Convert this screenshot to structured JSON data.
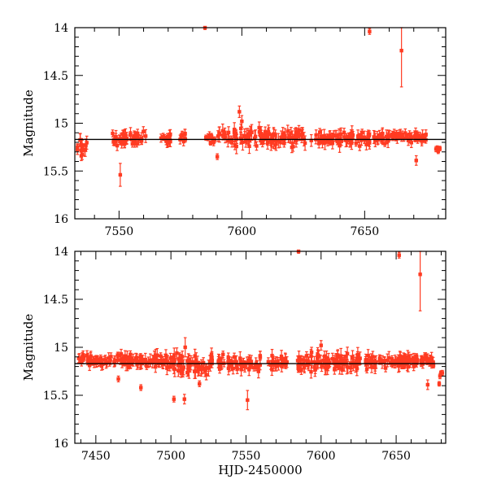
{
  "colors": {
    "points": "#ff3b22",
    "model_line": "#000000",
    "axes": "#000000",
    "background": "#ffffff"
  },
  "chart_data": [
    {
      "id": "top",
      "type": "scatter",
      "xlim": [
        7532,
        7683
      ],
      "ylim": [
        16,
        14
      ],
      "x_ticks": [
        7550,
        7600,
        7650
      ],
      "x_tick_labels": [
        "7550",
        "7600",
        "7650"
      ],
      "y_ticks": [
        14,
        14.5,
        15,
        15.5,
        16
      ],
      "y_tick_labels": [
        "14",
        "14.5",
        "15",
        "15.5",
        "16"
      ],
      "x_minor_step": 10,
      "y_minor_step": 0.1,
      "xlabel": "",
      "ylabel": "Magnitude",
      "reference_magnitude": 15.17,
      "segments": [
        {
          "x_start": 7533,
          "x_end": 7537,
          "count": 14,
          "center": 15.24,
          "scatter": 0.08,
          "err": 0.05
        },
        {
          "x_start": 7546,
          "x_end": 7561,
          "count": 42,
          "center": 15.16,
          "scatter": 0.05,
          "err": 0.05
        },
        {
          "x_start": 7567,
          "x_end": 7571,
          "count": 14,
          "center": 15.17,
          "scatter": 0.05,
          "err": 0.05
        },
        {
          "x_start": 7574,
          "x_end": 7577,
          "count": 8,
          "center": 15.15,
          "scatter": 0.04,
          "err": 0.04
        },
        {
          "x_start": 7585,
          "x_end": 7589,
          "count": 10,
          "center": 15.16,
          "scatter": 0.03,
          "err": 0.03
        },
        {
          "x_start": 7590,
          "x_end": 7626,
          "count": 110,
          "center": 15.15,
          "scatter": 0.06,
          "err": 0.06
        },
        {
          "x_start": 7628,
          "x_end": 7660,
          "count": 95,
          "center": 15.16,
          "scatter": 0.05,
          "err": 0.05
        },
        {
          "x_start": 7660,
          "x_end": 7675,
          "count": 45,
          "center": 15.14,
          "scatter": 0.04,
          "err": 0.04
        },
        {
          "x_start": 7679,
          "x_end": 7681,
          "count": 4,
          "center": 15.28,
          "scatter": 0.04,
          "err": 0.02
        }
      ],
      "outliers": [
        {
          "x": 7550.5,
          "y": 15.54,
          "err": 0.12
        },
        {
          "x": 7535.0,
          "y": 15.33,
          "err": 0.05
        },
        {
          "x": 7599.0,
          "y": 14.88,
          "err": 0.06
        },
        {
          "x": 7600.0,
          "y": 14.98,
          "err": 0.06
        },
        {
          "x": 7652.0,
          "y": 14.04,
          "err": 0.03
        },
        {
          "x": 7665.0,
          "y": 14.24,
          "err": 0.38
        },
        {
          "x": 7585.0,
          "y": 14.0,
          "err": 0.02
        },
        {
          "x": 7671.0,
          "y": 15.39,
          "err": 0.05
        },
        {
          "x": 7590.0,
          "y": 15.35,
          "err": 0.03
        }
      ]
    },
    {
      "id": "bottom",
      "type": "scatter",
      "xlim": [
        7436,
        7683
      ],
      "ylim": [
        16,
        14
      ],
      "x_ticks": [
        7450,
        7500,
        7550,
        7600,
        7650
      ],
      "x_tick_labels": [
        "7450",
        "7500",
        "7550",
        "7600",
        "7650"
      ],
      "y_ticks": [
        14,
        14.5,
        15,
        15.5,
        16
      ],
      "y_tick_labels": [
        "14",
        "14.5",
        "15",
        "15.5",
        "16"
      ],
      "x_minor_step": 10,
      "y_minor_step": 0.1,
      "xlabel": "HJD-2450000",
      "ylabel": "Magnitude",
      "reference_magnitude": 15.17,
      "segments": [
        {
          "x_start": 7437,
          "x_end": 7470,
          "count": 60,
          "center": 15.13,
          "scatter": 0.04,
          "err": 0.04
        },
        {
          "x_start": 7470,
          "x_end": 7500,
          "count": 60,
          "center": 15.15,
          "scatter": 0.05,
          "err": 0.05
        },
        {
          "x_start": 7500,
          "x_end": 7528,
          "count": 60,
          "center": 15.17,
          "scatter": 0.07,
          "err": 0.06
        },
        {
          "x_start": 7530,
          "x_end": 7545,
          "count": 25,
          "center": 15.16,
          "scatter": 0.05,
          "err": 0.05
        },
        {
          "x_start": 7546,
          "x_end": 7561,
          "count": 30,
          "center": 15.16,
          "scatter": 0.05,
          "err": 0.05
        },
        {
          "x_start": 7564,
          "x_end": 7578,
          "count": 25,
          "center": 15.16,
          "scatter": 0.05,
          "err": 0.05
        },
        {
          "x_start": 7584,
          "x_end": 7626,
          "count": 95,
          "center": 15.15,
          "scatter": 0.06,
          "err": 0.06
        },
        {
          "x_start": 7628,
          "x_end": 7660,
          "count": 70,
          "center": 15.15,
          "scatter": 0.05,
          "err": 0.05
        },
        {
          "x_start": 7660,
          "x_end": 7675,
          "count": 35,
          "center": 15.14,
          "scatter": 0.04,
          "err": 0.04
        },
        {
          "x_start": 7678,
          "x_end": 7681,
          "count": 4,
          "center": 15.3,
          "scatter": 0.04,
          "err": 0.02
        }
      ],
      "outliers": [
        {
          "x": 7502.0,
          "y": 15.54,
          "err": 0.03
        },
        {
          "x": 7509.0,
          "y": 15.54,
          "err": 0.05
        },
        {
          "x": 7509.5,
          "y": 15.0,
          "err": 0.1
        },
        {
          "x": 7551.0,
          "y": 15.55,
          "err": 0.1
        },
        {
          "x": 7465.0,
          "y": 15.33,
          "err": 0.03
        },
        {
          "x": 7519.0,
          "y": 15.38,
          "err": 0.03
        },
        {
          "x": 7480.0,
          "y": 15.42,
          "err": 0.03
        },
        {
          "x": 7600.0,
          "y": 14.98,
          "err": 0.05
        },
        {
          "x": 7652.0,
          "y": 14.04,
          "err": 0.03
        },
        {
          "x": 7666.0,
          "y": 14.24,
          "err": 0.38
        },
        {
          "x": 7585.0,
          "y": 14.0,
          "err": 0.02
        },
        {
          "x": 7671.0,
          "y": 15.39,
          "err": 0.05
        }
      ]
    }
  ]
}
